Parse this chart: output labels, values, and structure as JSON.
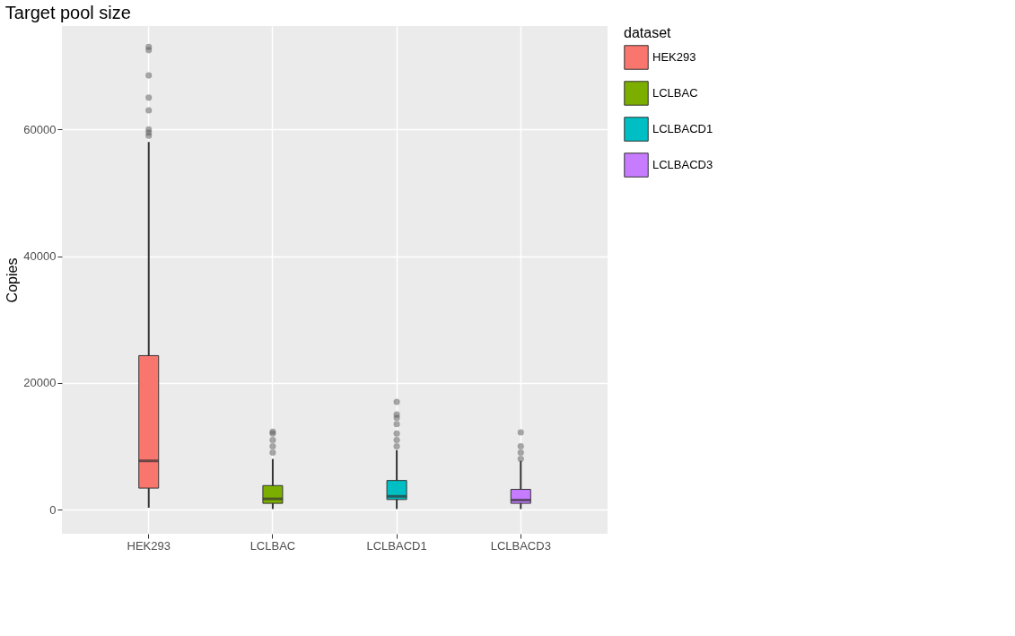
{
  "chart_data": {
    "type": "box",
    "title": "Target pool size",
    "ylabel": "Copies",
    "legend_title": "dataset",
    "categories": [
      "HEK293",
      "LCLBAC",
      "LCLBACD1",
      "LCLBACD3"
    ],
    "series": [
      {
        "name": "HEK293",
        "color": "#f8766d",
        "boxes": [
          {
            "low": 300,
            "q1": 3400,
            "median": 7700,
            "q3": 24300,
            "high": 58000,
            "outliers": [
              59000,
              59500,
              60000,
              63000,
              65000,
              68500,
              72500,
              73000
            ]
          },
          null,
          null,
          null
        ]
      },
      {
        "name": "LCLBAC",
        "color": "#7cae00",
        "boxes": [
          null,
          {
            "low": 100,
            "q1": 1000,
            "median": 1700,
            "q3": 3800,
            "high": 8000,
            "outliers": [
              9000,
              10000,
              11000,
              12000,
              12300
            ]
          },
          null,
          null
        ]
      },
      {
        "name": "LCLBACD1",
        "color": "#00bfc4",
        "boxes": [
          null,
          null,
          {
            "low": 100,
            "q1": 1600,
            "median": 2100,
            "q3": 4600,
            "high": 9400,
            "outliers": [
              10000,
              11000,
              12000,
              13500,
              14500,
              15000,
              17000
            ]
          },
          null
        ]
      },
      {
        "name": "LCLBACD3",
        "color": "#c77cff",
        "boxes": [
          null,
          null,
          null,
          {
            "low": 100,
            "q1": 1000,
            "median": 1500,
            "q3": 3200,
            "high": 7700,
            "outliers": [
              8000,
              9000,
              10000,
              12200
            ]
          }
        ]
      }
    ],
    "ylim": [
      -3800,
      76300
    ],
    "yticks": [
      0,
      20000,
      40000,
      60000
    ],
    "grid": true,
    "legend": "right"
  }
}
